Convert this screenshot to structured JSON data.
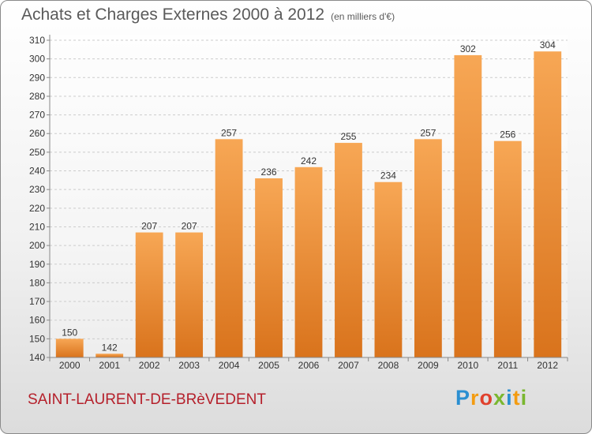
{
  "header": {
    "title": "Achats et Charges Externes 2000 à 2012",
    "unit": "(en milliers d'€)"
  },
  "footer": {
    "commune": "SAINT-LAURENT-DE-BRèVEDENT",
    "logo": {
      "p": "P",
      "r": "r",
      "o": "o",
      "x": "x",
      "i": "i",
      "t": "t",
      "i2": "i"
    }
  },
  "colors": {
    "bar_top": "#f7a755",
    "bar_bottom": "#d9731c",
    "grid": "#cccccc",
    "axis": "#888888"
  },
  "chart_data": {
    "type": "bar",
    "title": "Achats et Charges Externes 2000 à 2012",
    "xlabel": "",
    "ylabel": "",
    "categories": [
      "2000",
      "2001",
      "2002",
      "2003",
      "2004",
      "2005",
      "2006",
      "2007",
      "2008",
      "2009",
      "2010",
      "2011",
      "2012"
    ],
    "values": [
      150,
      142,
      207,
      207,
      257,
      236,
      242,
      255,
      234,
      257,
      302,
      256,
      304
    ],
    "ylim": [
      140,
      310
    ],
    "yticks": [
      140,
      150,
      160,
      170,
      180,
      190,
      200,
      210,
      220,
      230,
      240,
      250,
      260,
      270,
      280,
      290,
      300,
      310
    ],
    "grid": true,
    "data_labels": true
  }
}
